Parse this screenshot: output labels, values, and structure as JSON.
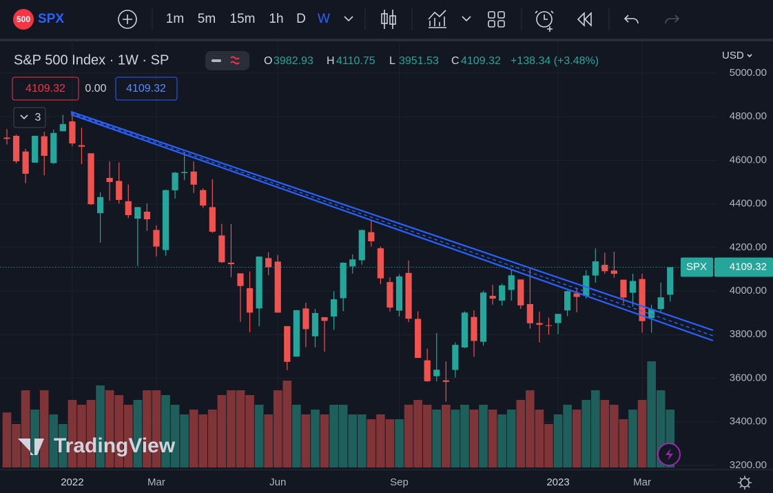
{
  "toolbar": {
    "badge": "500",
    "symbol": "SPX",
    "intervals": [
      "1m",
      "5m",
      "15m",
      "1h",
      "D",
      "W"
    ],
    "active_interval": "W"
  },
  "legend": {
    "title": "S&P 500 Index · 1W · SP",
    "fields": [
      "O",
      "H",
      "L",
      "C"
    ],
    "change": "+138.34 (+3.48%)"
  },
  "price_boxes": [
    "4109.32",
    "0.00",
    "4109.32"
  ],
  "indicator_count": "3",
  "currency": "USD",
  "price_label": "SPX",
  "watermark": "TradingView",
  "chart_data": {
    "type": "candlestick",
    "categories": [
      null,
      null,
      null,
      null,
      null,
      null,
      null,
      "2022",
      null,
      null,
      null,
      null,
      null,
      null,
      null,
      null,
      "Mar",
      null,
      null,
      null,
      null,
      null,
      null,
      null,
      null,
      null,
      null,
      null,
      null,
      "Jun",
      null,
      null,
      null,
      null,
      null,
      null,
      null,
      null,
      null,
      null,
      null,
      null,
      "Sep",
      null,
      null,
      null,
      null,
      null,
      null,
      null,
      null,
      null,
      null,
      null,
      null,
      null,
      null,
      null,
      null,
      "2023",
      null,
      null,
      null,
      null,
      null,
      null,
      null,
      null,
      "Mar",
      null,
      null,
      null
    ],
    "open": [
      4704,
      4712,
      4640,
      4589,
      4710,
      4587,
      4733,
      4778,
      4669,
      4632,
      4357,
      4519,
      4505,
      4412,
      4332,
      4364,
      4280,
      4188,
      4462,
      4541,
      4548,
      4463,
      4385,
      4255,
      4130,
      4081,
      4013,
      3920,
      4151,
      4135,
      3839,
      3699,
      3920,
      3792,
      3880,
      3883,
      3967,
      4113,
      4141,
      4270,
      4196,
      4041,
      3910,
      4083,
      3872,
      3682,
      3609,
      3590,
      3638,
      3741,
      3881,
      3767,
      3978,
      3956,
      4005,
      4053,
      3940,
      3853,
      3843,
      3853,
      3911,
      3989,
      3978,
      4071,
      4120,
      4094,
      4052,
      3992,
      4055,
      3876,
      3917,
      3982.93
    ],
    "high": [
      4743,
      4718,
      4652,
      4713,
      4731,
      4740,
      4808,
      4819,
      4749,
      4632,
      4453,
      4595,
      4590,
      4489,
      4386,
      4402,
      4301,
      4465,
      4546,
      4637,
      4594,
      4471,
      4513,
      4308,
      4307,
      4081,
      4090,
      4158,
      4178,
      4165,
      3839,
      3913,
      3946,
      3918,
      3880,
      3999,
      4131,
      4168,
      4281,
      4325,
      4204,
      4062,
      4077,
      4140,
      3907,
      3736,
      3807,
      3677,
      3765,
      3907,
      3911,
      4001,
      4028,
      4034,
      4100,
      4053,
      4101,
      3906,
      3878,
      3879,
      4002,
      4015,
      4095,
      4195,
      4176,
      4180,
      4052,
      4079,
      4079,
      3937,
      4039,
      4110.75
    ],
    "low": [
      4672,
      4585,
      4495,
      4589,
      4531,
      4583,
      4733,
      4664,
      4582,
      4395,
      4222,
      4414,
      4401,
      4335,
      4115,
      4276,
      4158,
      4162,
      4424,
      4508,
      4450,
      4381,
      4267,
      4129,
      4063,
      3859,
      3811,
      3838,
      4073,
      3900,
      3637,
      3699,
      3742,
      3742,
      3721,
      3821,
      3907,
      4080,
      4120,
      4204,
      4031,
      3906,
      3883,
      3857,
      3693,
      3584,
      3585,
      3492,
      3603,
      3738,
      3698,
      3749,
      3938,
      3933,
      3956,
      3918,
      3827,
      3764,
      3800,
      3802,
      3885,
      3902,
      3965,
      4038,
      4079,
      4061,
      3943,
      3928,
      3809,
      3809,
      3905,
      3951.53
    ],
    "close": [
      4698,
      4595,
      4538,
      4712,
      4620,
      4725,
      4766,
      4677,
      4662,
      4398,
      4431,
      4500,
      4418,
      4348,
      4385,
      4329,
      4204,
      4463,
      4543,
      4546,
      4488,
      4392,
      4272,
      4132,
      4123,
      4023,
      3901,
      4158,
      4109,
      3901,
      3675,
      3912,
      3825,
      3899,
      3863,
      3962,
      4130,
      4145,
      4280,
      4228,
      4058,
      3924,
      4067,
      3873,
      3693,
      3586,
      3639,
      3583,
      3753,
      3901,
      3771,
      3993,
      3965,
      4026,
      4072,
      3934,
      3852,
      3845,
      3840,
      3895,
      3999,
      3973,
      4071,
      4136,
      4091,
      4079,
      3970,
      4046,
      3862,
      3917,
      3971,
      4109.32
    ],
    "volume": [
      11.4,
      9,
      16,
      12,
      16,
      11,
      9,
      14,
      13,
      14,
      17,
      16,
      15,
      13,
      14,
      16,
      16,
      15,
      13,
      11,
      12,
      11,
      12,
      15,
      16,
      16,
      15,
      13,
      11,
      16,
      18,
      13,
      11,
      12,
      11,
      13,
      13,
      11,
      11,
      10,
      11,
      10,
      10,
      13,
      14,
      13,
      12,
      13,
      12,
      13,
      12,
      13,
      12,
      11,
      12,
      14,
      16,
      12,
      9,
      11,
      13,
      12,
      14,
      16,
      14,
      13,
      10,
      12,
      14,
      22,
      16,
      12
    ],
    "up_color": "#26a69a",
    "down_color": "#ef5350",
    "volume_up_color": "#1f5f5b",
    "volume_down_color": "#7f3438",
    "ylim": [
      3184,
      5139
    ],
    "yticks": [
      {
        "value": 3200,
        "label": "3200.00"
      },
      {
        "value": 3400,
        "label": "3400.00"
      },
      {
        "value": 3600,
        "label": "3600.00"
      },
      {
        "value": 3800,
        "label": "3800.00"
      },
      {
        "value": 4000,
        "label": "4000.00"
      },
      {
        "value": 4200,
        "label": "4200.00"
      },
      {
        "value": 4400,
        "label": "4400.00"
      },
      {
        "value": 4600,
        "label": "4600.00"
      },
      {
        "value": 4800,
        "label": "4800.00"
      },
      {
        "value": 5000,
        "label": "5000.00"
      }
    ],
    "grid": true
  }
}
